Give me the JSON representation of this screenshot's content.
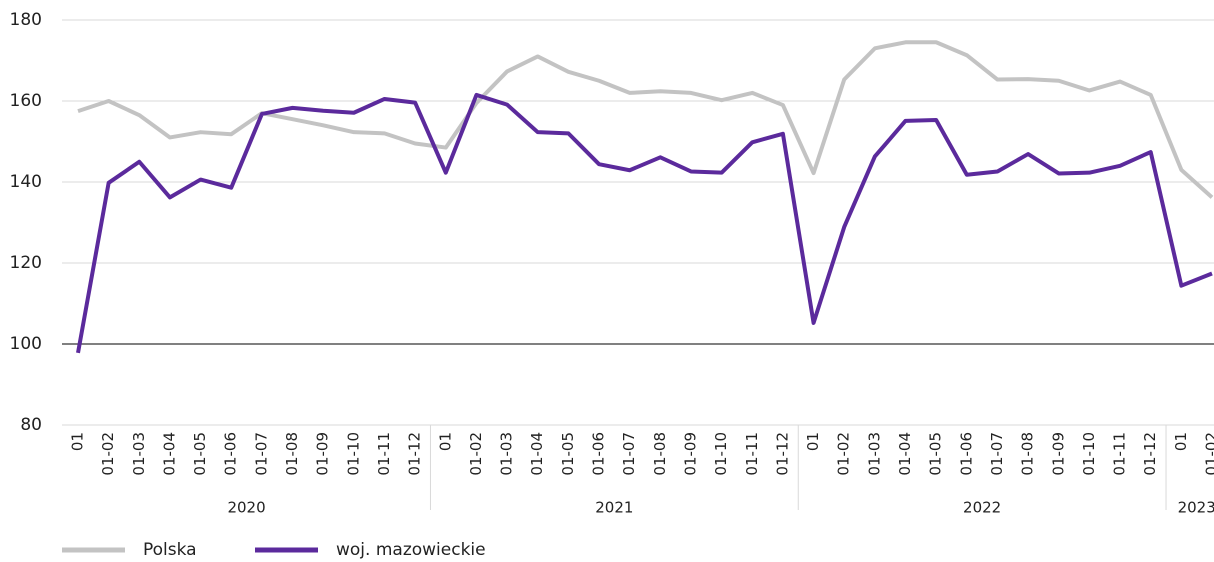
{
  "chart_data": {
    "type": "line",
    "groups": [
      {
        "label": "2020",
        "categories": [
          "01",
          "01-02",
          "01-03",
          "01-04",
          "01-05",
          "01-06",
          "01-07",
          "01-08",
          "01-09",
          "01-10",
          "01-11",
          "01-12"
        ]
      },
      {
        "label": "2021",
        "categories": [
          "01",
          "01-02",
          "01-03",
          "01-04",
          "01-05",
          "01-06",
          "01-07",
          "01-08",
          "01-09",
          "01-10",
          "01-11",
          "01-12"
        ]
      },
      {
        "label": "2022",
        "categories": [
          "01",
          "01-02",
          "01-03",
          "01-04",
          "01-05",
          "01-06",
          "01-07",
          "01-08",
          "01-09",
          "01-10",
          "01-11",
          "01-12"
        ]
      },
      {
        "label": "2023",
        "categories": [
          "01",
          "01-02"
        ]
      }
    ],
    "series": [
      {
        "name": "Polska",
        "color": "#c3c3c3",
        "values": [
          157.5,
          160,
          156.5,
          151,
          152.3,
          151.8,
          157,
          155.5,
          154,
          152.3,
          152,
          149.5,
          148.5,
          159.5,
          167.3,
          171,
          167.2,
          165,
          162,
          162.4,
          162,
          160.2,
          162,
          159,
          142.2,
          165.3,
          173,
          174.5,
          174.5,
          171.3,
          165.3,
          165.4,
          165,
          162.6,
          164.8,
          161.5,
          143,
          136.2
        ]
      },
      {
        "name": "woj. mazowieckie",
        "color": "#5b2a9c",
        "values": [
          97.8,
          139.8,
          145,
          136.2,
          140.6,
          138.6,
          156.8,
          158.3,
          157.6,
          157.1,
          160.5,
          159.6,
          142.3,
          161.5,
          159.1,
          152.3,
          152,
          144.4,
          142.9,
          146.1,
          142.6,
          142.3,
          149.8,
          151.9,
          105.2,
          128.9,
          146.3,
          155.1,
          155.3,
          141.8,
          142.6,
          146.9,
          142.1,
          142.3,
          144,
          147.4,
          114.4,
          117.4
        ]
      }
    ],
    "ylim": [
      80,
      180
    ],
    "yticks": [
      80,
      100,
      120,
      140,
      160,
      180
    ],
    "grid": true,
    "baseline": 100,
    "legend": "bottom-left"
  }
}
